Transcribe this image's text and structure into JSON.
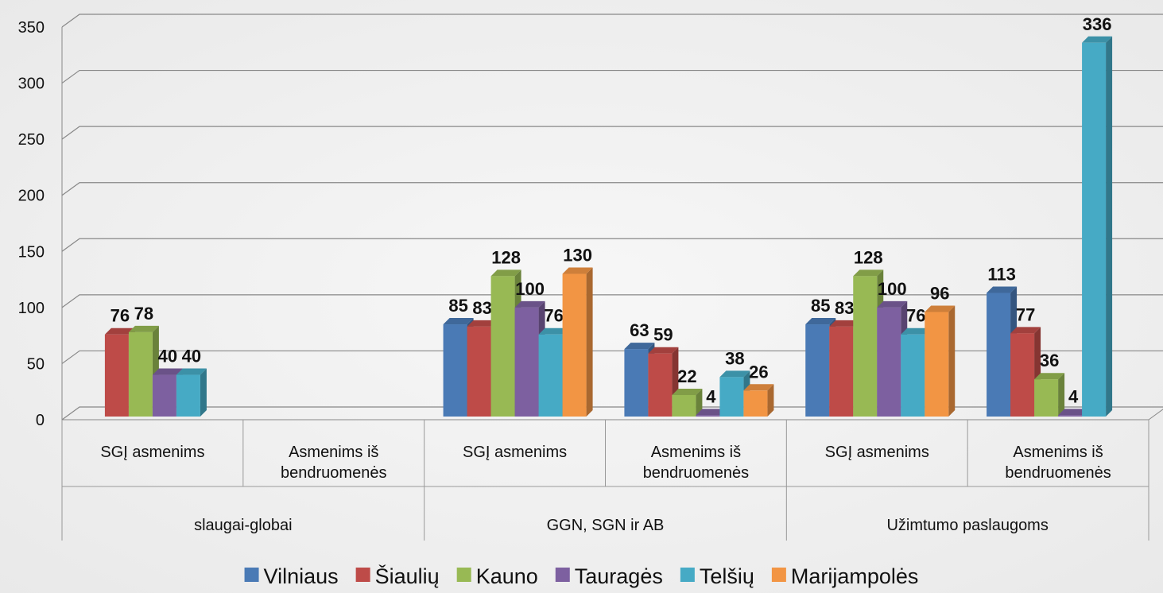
{
  "chart_data": {
    "type": "bar3d",
    "categories": [
      "SGĮ asmenims",
      "Asmenims iš bendruomenės",
      "SGĮ asmenims",
      "Asmenims iš bendruomenės",
      "SGĮ asmenims",
      "Asmenims iš bendruomenės"
    ],
    "groups": [
      "slaugai-globai",
      "GGN, SGN ir AB",
      "Užimtumo paslaugoms"
    ],
    "series": [
      {
        "name": "Vilniaus",
        "color": "#4a7ab5",
        "values": [
          null,
          null,
          85,
          63,
          85,
          113
        ]
      },
      {
        "name": "Šiaulių",
        "color": "#be4b48",
        "values": [
          76,
          null,
          83,
          59,
          83,
          77
        ]
      },
      {
        "name": "Kauno",
        "color": "#98b954",
        "values": [
          78,
          null,
          128,
          22,
          128,
          36
        ]
      },
      {
        "name": "Tauragės",
        "color": "#7d60a0",
        "values": [
          40,
          null,
          100,
          4,
          100,
          4
        ]
      },
      {
        "name": "Telšių",
        "color": "#46aac5",
        "values": [
          40,
          null,
          76,
          38,
          76,
          336
        ]
      },
      {
        "name": "Marijampolės",
        "color": "#f29544",
        "values": [
          null,
          null,
          130,
          26,
          96,
          null
        ]
      }
    ],
    "ylim": [
      0,
      350
    ],
    "yticks": [
      0,
      50,
      100,
      150,
      200,
      250,
      300,
      350
    ],
    "grid": true
  }
}
